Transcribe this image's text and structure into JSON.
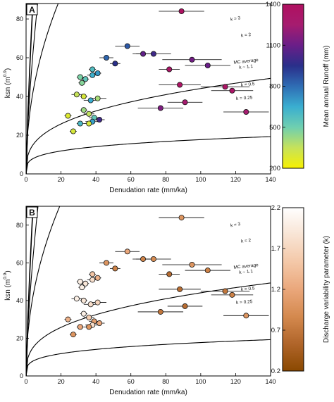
{
  "chart_data": [
    {
      "type": "scatter",
      "panel_label": "A",
      "xlabel": "Denudation rate (mm/ka)",
      "ylabel": "ksn (m",
      "ylabel_exp": "0.9",
      "ylabel_close": ")",
      "xlim": [
        0,
        140
      ],
      "ylim": [
        0,
        88
      ],
      "xticks": [
        0,
        20,
        40,
        60,
        80,
        100,
        120,
        140
      ],
      "yticks": [
        0,
        20,
        40,
        60,
        80
      ],
      "grid": false,
      "curves": [
        {
          "label": "k = 3",
          "k": 3,
          "scale": 5.6
        },
        {
          "label": "k = 2",
          "k": 2,
          "scale": 9.5
        },
        {
          "label_lines": [
            "MC average",
            "k ~ 1.1"
          ],
          "k": 1.1,
          "scale": 22.0
        },
        {
          "label": "k = 0.5",
          "k": 0.5,
          "scale": 25.0
        },
        {
          "label": "k = 0.25",
          "k": 0.25,
          "scale": 30.0
        }
      ],
      "colorbar": {
        "label": "Mean annual Runoff (mm)",
        "range": [
          200,
          1400
        ],
        "ticks": [
          200,
          500,
          800,
          1100,
          1400
        ],
        "colors": [
          "#f7f000",
          "#c6e25a",
          "#6fcfb0",
          "#3aaed0",
          "#2f6db4",
          "#2a2f8a",
          "#6a1e88",
          "#a61c6f",
          "#b01060"
        ]
      },
      "points": [
        {
          "x": 89,
          "xerr": 13,
          "y": 84,
          "c": 1380
        },
        {
          "x": 58,
          "xerr": 7,
          "y": 66,
          "c": 850
        },
        {
          "x": 46,
          "xerr": 4,
          "y": 60,
          "c": 820
        },
        {
          "x": 67,
          "xerr": 6,
          "y": 62,
          "c": 1080
        },
        {
          "x": 73,
          "xerr": 10,
          "y": 62,
          "c": 1000
        },
        {
          "x": 51,
          "xerr": 3,
          "y": 57,
          "c": 950
        },
        {
          "x": 95,
          "xerr": 17,
          "y": 59,
          "c": 1120
        },
        {
          "x": 104,
          "xerr": 13,
          "y": 56,
          "c": 1100
        },
        {
          "x": 82,
          "xerr": 6,
          "y": 54,
          "c": 1330
        },
        {
          "x": 38,
          "xerr": 2,
          "y": 54,
          "c": 580
        },
        {
          "x": 41,
          "xerr": 2,
          "y": 52,
          "c": 700
        },
        {
          "x": 38,
          "xerr": 3,
          "y": 51,
          "c": 640
        },
        {
          "x": 31,
          "xerr": 2,
          "y": 50,
          "c": 480
        },
        {
          "x": 34,
          "xerr": 2,
          "y": 49,
          "c": 540
        },
        {
          "x": 32,
          "xerr": 2,
          "y": 47,
          "c": 460
        },
        {
          "x": 88,
          "xerr": 12,
          "y": 46,
          "c": 1360
        },
        {
          "x": 114,
          "xerr": 14,
          "y": 45,
          "c": 1340
        },
        {
          "x": 118,
          "xerr": 12,
          "y": 43,
          "c": 1330
        },
        {
          "x": 29,
          "xerr": 3,
          "y": 41,
          "c": 350
        },
        {
          "x": 33,
          "xerr": 2,
          "y": 40,
          "c": 300
        },
        {
          "x": 41,
          "xerr": 5,
          "y": 39,
          "c": 400
        },
        {
          "x": 37,
          "xerr": 4,
          "y": 38,
          "c": 650
        },
        {
          "x": 91,
          "xerr": 10,
          "y": 37,
          "c": 1250
        },
        {
          "x": 77,
          "xerr": 13,
          "y": 34,
          "c": 1150
        },
        {
          "x": 33,
          "xerr": 2,
          "y": 33,
          "c": 420
        },
        {
          "x": 126,
          "xerr": 13,
          "y": 32,
          "c": 1250
        },
        {
          "x": 36,
          "xerr": 3,
          "y": 31,
          "c": 360
        },
        {
          "x": 24,
          "xerr": 2,
          "y": 30,
          "c": 280
        },
        {
          "x": 39,
          "xerr": 3,
          "y": 29,
          "c": 540
        },
        {
          "x": 42,
          "xerr": 3,
          "y": 28,
          "c": 1000
        },
        {
          "x": 38,
          "xerr": 4,
          "y": 27,
          "c": 680
        },
        {
          "x": 31,
          "xerr": 2,
          "y": 26,
          "c": 600
        },
        {
          "x": 36,
          "xerr": 3,
          "y": 26,
          "c": 300
        },
        {
          "x": 27,
          "xerr": 2,
          "y": 22,
          "c": 300
        }
      ]
    },
    {
      "type": "scatter",
      "panel_label": "B",
      "xlabel": "Denudation rate (mm/ka)",
      "ylabel": "ksn (m",
      "ylabel_exp": "0.9",
      "ylabel_close": ")",
      "xlim": [
        0,
        140
      ],
      "ylim": [
        0,
        90
      ],
      "xticks": [
        0,
        20,
        40,
        60,
        80,
        100,
        120,
        140
      ],
      "yticks": [
        0,
        20,
        40,
        60,
        80
      ],
      "grid": false,
      "curves": [
        {
          "label": "k = 3",
          "k": 3,
          "scale": 5.6
        },
        {
          "label": "k = 2",
          "k": 2,
          "scale": 9.5
        },
        {
          "label_lines": [
            "MC average",
            "k ~ 1.1"
          ],
          "k": 1.1,
          "scale": 22.0
        },
        {
          "label": "k = 0.5",
          "k": 0.5,
          "scale": 25.0
        },
        {
          "label": "k = 0.25",
          "k": 0.25,
          "scale": 30.0
        }
      ],
      "colorbar": {
        "label": "Discharge variability parameter (k)",
        "range": [
          0.2,
          2.2
        ],
        "ticks": [
          0.2,
          0.7,
          1.2,
          1.7,
          2.2
        ],
        "tick_labels": [
          "0.2",
          "0.7",
          "1.2",
          "1.7",
          "2.2"
        ],
        "colors": [
          "#8a4800",
          "#b0652a",
          "#d4894e",
          "#eaa77b",
          "#f4c8a8",
          "#f8e4d4",
          "#ffffff"
        ]
      },
      "points": [
        {
          "x": 89,
          "xerr": 13,
          "y": 84,
          "c": 1.0
        },
        {
          "x": 58,
          "xerr": 7,
          "y": 66,
          "c": 1.2
        },
        {
          "x": 46,
          "xerr": 4,
          "y": 60,
          "c": 1.0
        },
        {
          "x": 67,
          "xerr": 6,
          "y": 62,
          "c": 0.8
        },
        {
          "x": 73,
          "xerr": 10,
          "y": 62,
          "c": 0.9
        },
        {
          "x": 51,
          "xerr": 3,
          "y": 57,
          "c": 0.8
        },
        {
          "x": 95,
          "xerr": 17,
          "y": 59,
          "c": 1.0
        },
        {
          "x": 104,
          "xerr": 13,
          "y": 56,
          "c": 0.8
        },
        {
          "x": 82,
          "xerr": 6,
          "y": 54,
          "c": 0.6
        },
        {
          "x": 38,
          "xerr": 2,
          "y": 54,
          "c": 1.5
        },
        {
          "x": 41,
          "xerr": 2,
          "y": 52,
          "c": 1.3
        },
        {
          "x": 38,
          "xerr": 3,
          "y": 51,
          "c": 1.8
        },
        {
          "x": 31,
          "xerr": 2,
          "y": 50,
          "c": 2.0
        },
        {
          "x": 34,
          "xerr": 2,
          "y": 49,
          "c": 1.9
        },
        {
          "x": 32,
          "xerr": 2,
          "y": 47,
          "c": 2.0
        },
        {
          "x": 88,
          "xerr": 12,
          "y": 46,
          "c": 0.6
        },
        {
          "x": 114,
          "xerr": 14,
          "y": 45,
          "c": 0.7
        },
        {
          "x": 118,
          "xerr": 12,
          "y": 43,
          "c": 0.8
        },
        {
          "x": 29,
          "xerr": 3,
          "y": 41,
          "c": 2.0
        },
        {
          "x": 33,
          "xerr": 2,
          "y": 40,
          "c": 1.9
        },
        {
          "x": 41,
          "xerr": 5,
          "y": 39,
          "c": 1.7
        },
        {
          "x": 37,
          "xerr": 4,
          "y": 38,
          "c": 1.8
        },
        {
          "x": 91,
          "xerr": 10,
          "y": 37,
          "c": 0.6
        },
        {
          "x": 77,
          "xerr": 13,
          "y": 34,
          "c": 0.7
        },
        {
          "x": 33,
          "xerr": 2,
          "y": 33,
          "c": 2.0
        },
        {
          "x": 126,
          "xerr": 13,
          "y": 32,
          "c": 1.0
        },
        {
          "x": 36,
          "xerr": 3,
          "y": 31,
          "c": 1.6
        },
        {
          "x": 24,
          "xerr": 2,
          "y": 30,
          "c": 1.3
        },
        {
          "x": 39,
          "xerr": 3,
          "y": 29,
          "c": 1.1
        },
        {
          "x": 42,
          "xerr": 3,
          "y": 28,
          "c": 1.2
        },
        {
          "x": 38,
          "xerr": 4,
          "y": 27,
          "c": 1.8
        },
        {
          "x": 31,
          "xerr": 2,
          "y": 26,
          "c": 1.2
        },
        {
          "x": 36,
          "xerr": 3,
          "y": 26,
          "c": 1.0
        },
        {
          "x": 27,
          "xerr": 2,
          "y": 22,
          "c": 1.0
        }
      ]
    }
  ]
}
